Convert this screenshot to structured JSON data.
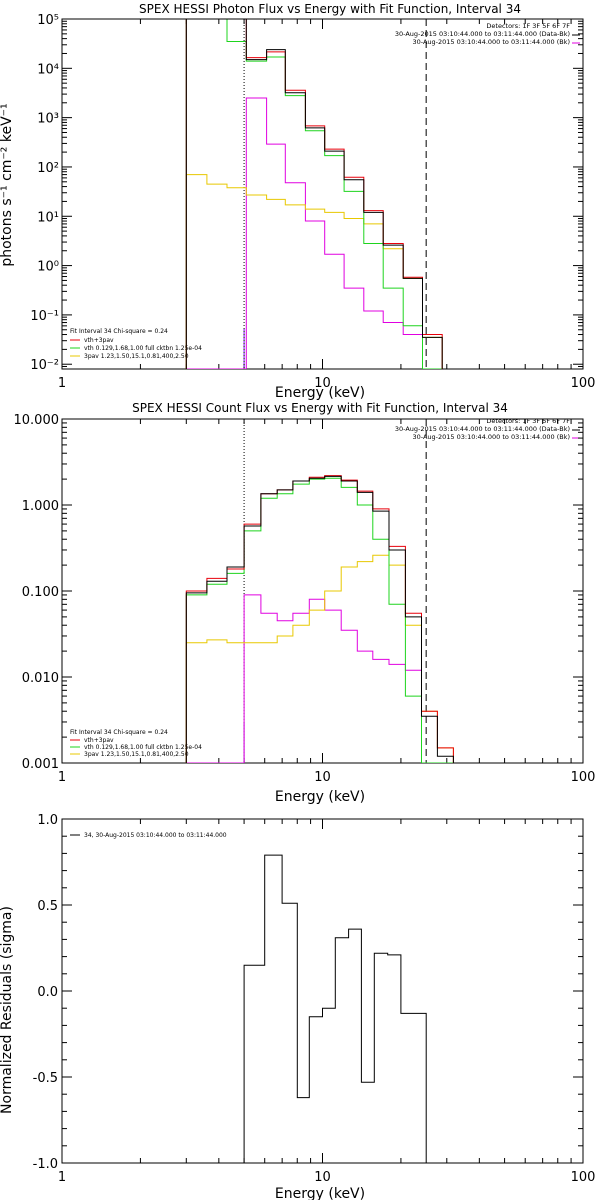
{
  "colors": {
    "total": "#000000",
    "sum": "#e8000b",
    "vth": "#1ed41e",
    "spav": "#e8c800",
    "pileup": "#e000e0",
    "interval": "#7a00ff"
  },
  "chart_data": [
    {
      "type": "line",
      "title": "SPEX HESSI Photon Flux vs Energy with Fit Function, Interval 34",
      "xlabel": "Energy (keV)",
      "ylabel": "photons s⁻¹ cm⁻² keV⁻¹",
      "xscale": "log",
      "yscale": "log",
      "xlim": [
        1,
        100
      ],
      "ylim": [
        0.008,
        100000
      ],
      "x_ticks": [
        "1",
        "10",
        "100"
      ],
      "y_ticks": [
        "10⁻²",
        "10⁻¹",
        "10⁰",
        "10¹",
        "10²",
        "10³",
        "10⁴",
        "10⁵"
      ],
      "detectors_label": "Detectors: 1F 3F 5F 6F 7F",
      "time_labels": [
        "30-Aug-2015 03:10:44.000 to 03:11:44.000 (Data-Bk)",
        "30-Aug-2015 03:10:44.000 to 03:11:44.000 (Bk)"
      ],
      "legend": [
        "Fit Interval 34   Chi-square = 0.24",
        "vth+3pav",
        "vth 0.129,1.68,1.00  full cktbn 1.25e-04",
        "3pav 1.23,1.50,15.1,0.81,400,2.50"
      ],
      "bin_edges": [
        3.0,
        3.6,
        4.3,
        5.1,
        6.1,
        7.2,
        8.6,
        10.2,
        12.1,
        14.4,
        17.1,
        20.4,
        24.2,
        28.8
      ],
      "series": [
        {
          "name": "data",
          "values": [
            100000,
            100000,
            100000,
            15000,
            24000,
            3200,
            620,
            210,
            55,
            12.0,
            2.6,
            0.55,
            0.035
          ]
        },
        {
          "name": "vth+3pav",
          "values": [
            100000,
            100000,
            100000,
            16500,
            21500,
            3600,
            680,
            230,
            62,
            13.0,
            2.8,
            0.58,
            0.04
          ]
        },
        {
          "name": "vth",
          "values": [
            100000,
            100000,
            35000,
            14000,
            17000,
            2800,
            540,
            170,
            32,
            2.8,
            0.35,
            0.06,
            0.008
          ]
        },
        {
          "name": "3pav",
          "values": [
            70,
            45,
            38,
            27,
            22,
            17,
            14,
            12,
            9.0,
            7.0,
            2.2,
            0.55,
            0.035
          ]
        },
        {
          "name": "",
          "values": [
            0,
            0,
            0,
            2500,
            290,
            48,
            8.0,
            1.7,
            0.35,
            0.12,
            0.07,
            0.04,
            0
          ]
        }
      ],
      "markers": {
        "dotted_x": 5.0,
        "dashed_x": 25.0
      }
    },
    {
      "type": "line",
      "title": "SPEX HESSI Count Flux vs Energy with Fit Function, Interval 34",
      "xlabel": "Energy (keV)",
      "ylabel": "",
      "xscale": "log",
      "yscale": "log",
      "xlim": [
        1,
        100
      ],
      "ylim": [
        0.001,
        10
      ],
      "x_ticks": [
        "1",
        "10",
        "100"
      ],
      "y_ticks": [
        "0.001",
        "0.010",
        "0.100",
        "1.000",
        "10.000"
      ],
      "detectors_label": "Detectors: 1F 3F 5F 6F 7F",
      "time_labels": [
        "30-Aug-2015 03:10:44.000 to 03:11:44.000 (Data-Bk)",
        "30-Aug-2015 03:10:44.000 to 03:11:44.000 (Bk)"
      ],
      "legend": [
        "Fit Interval 34   Chi-square = 0.24",
        "vth+3pav",
        "vth 0.129,1.68,1.00  full cktbn 1.25e-04",
        "3pav 1.23,1.50,15.1,0.81,400,2.50"
      ],
      "bin_edges": [
        3.0,
        3.6,
        4.3,
        5.0,
        5.8,
        6.7,
        7.7,
        8.9,
        10.2,
        11.8,
        13.6,
        15.6,
        18.0,
        20.8,
        24.0,
        27.6,
        31.8
      ],
      "series": [
        {
          "name": "data",
          "values": [
            0.095,
            0.13,
            0.19,
            0.57,
            1.35,
            1.5,
            1.9,
            2.05,
            2.15,
            1.9,
            1.4,
            0.85,
            0.3,
            0.05,
            0.0035,
            0.0012
          ]
        },
        {
          "name": "vth+3pav",
          "values": [
            0.1,
            0.14,
            0.18,
            0.6,
            1.35,
            1.5,
            1.9,
            2.1,
            2.2,
            1.95,
            1.45,
            0.9,
            0.33,
            0.055,
            0.004,
            0.0015
          ]
        },
        {
          "name": "vth",
          "values": [
            0.09,
            0.12,
            0.16,
            0.5,
            1.2,
            1.35,
            1.75,
            2.0,
            2.05,
            1.6,
            1.0,
            0.4,
            0.07,
            0.006,
            0.001,
            0.001
          ]
        },
        {
          "name": "3pav",
          "values": [
            0.025,
            0.027,
            0.025,
            0.025,
            0.025,
            0.03,
            0.04,
            0.06,
            0.1,
            0.19,
            0.22,
            0.26,
            0.2,
            0.04,
            0.004,
            0.0015
          ]
        },
        {
          "name": "",
          "values": [
            0.001,
            0.001,
            0.001,
            0.09,
            0.055,
            0.045,
            0.055,
            0.08,
            0.06,
            0.035,
            0.02,
            0.016,
            0.014,
            0.012,
            0.001,
            0.001
          ]
        }
      ],
      "markers": {
        "dotted_x": 5.0,
        "dashed_x": 25.0
      }
    },
    {
      "type": "line",
      "title": "",
      "xlabel": "Energy (keV)",
      "ylabel": "Normalized Residuals (sigma)",
      "xscale": "log",
      "yscale": "linear",
      "xlim": [
        1,
        100
      ],
      "ylim": [
        -1.0,
        1.0
      ],
      "x_ticks": [
        "1",
        "10",
        "100"
      ],
      "y_ticks": [
        "-1.0",
        "-0.5",
        "0.0",
        "0.5",
        "1.0"
      ],
      "legend": [
        "34, 30-Aug-2015 03:10:44.000 to 03:11:44.000"
      ],
      "bin_edges": [
        5.0,
        6.0,
        7.0,
        8.0,
        8.9,
        10.0,
        11.2,
        12.6,
        14.1,
        15.8,
        17.8,
        20.0,
        22.4,
        25.0
      ],
      "series": [
        {
          "name": "",
          "values": [
            0.15,
            0.79,
            0.51,
            -0.62,
            -0.15,
            -0.1,
            0.31,
            0.36,
            -0.53,
            0.22,
            0.21,
            -0.13,
            -0.13
          ]
        }
      ]
    }
  ]
}
